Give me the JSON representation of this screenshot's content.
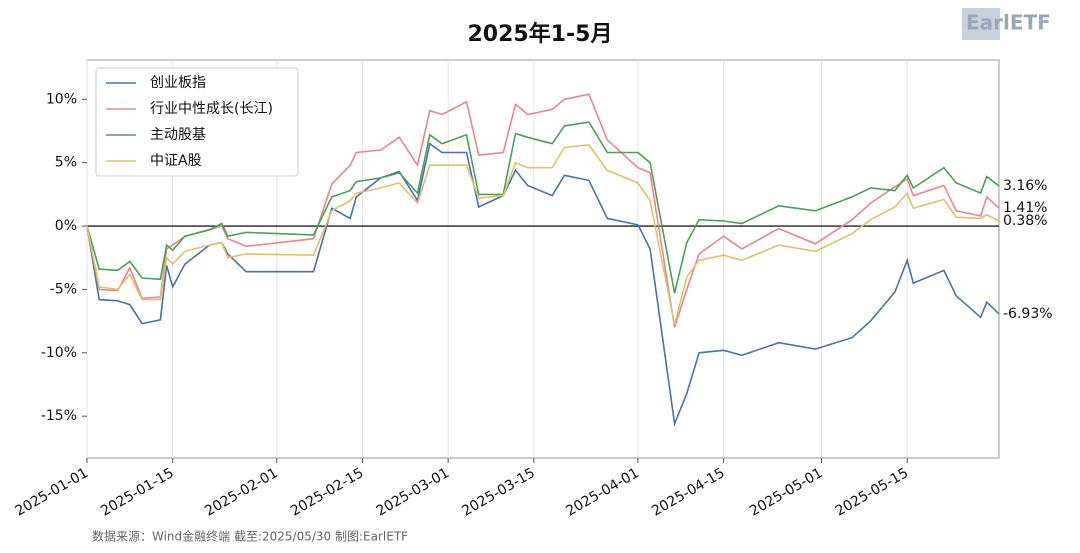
{
  "chart_data": {
    "type": "line",
    "title": "2025年1-5月",
    "source": "数据来源：Wind金融终端 截至:2025/05/30 制图:EarlETF",
    "logo": "EarlETF",
    "x": [
      "2025-01-01",
      "2025-01-03",
      "2025-01-06",
      "2025-01-08",
      "2025-01-10",
      "2025-01-13",
      "2025-01-14",
      "2025-01-15",
      "2025-01-17",
      "2025-01-21",
      "2025-01-23",
      "2025-01-24",
      "2025-01-27",
      "2025-02-07",
      "2025-02-10",
      "2025-02-13",
      "2025-02-14",
      "2025-02-18",
      "2025-02-21",
      "2025-02-24",
      "2025-02-26",
      "2025-02-28",
      "2025-03-04",
      "2025-03-06",
      "2025-03-10",
      "2025-03-12",
      "2025-03-14",
      "2025-03-18",
      "2025-03-20",
      "2025-03-24",
      "2025-03-27",
      "2025-04-01",
      "2025-04-03",
      "2025-04-07",
      "2025-04-09",
      "2025-04-11",
      "2025-04-15",
      "2025-04-18",
      "2025-04-24",
      "2025-04-30",
      "2025-05-06",
      "2025-05-09",
      "2025-05-13",
      "2025-05-15",
      "2025-05-16",
      "2025-05-21",
      "2025-05-23",
      "2025-05-27",
      "2025-05-28",
      "2025-05-30"
    ],
    "series": [
      {
        "name": "创业板指",
        "color": "#4a6fb5",
        "end_label": "-6.93%",
        "values": [
          0,
          -5.8,
          -5.9,
          -6.2,
          -7.7,
          -7.4,
          -3.1,
          -4.8,
          -3.0,
          -1.5,
          -1.3,
          -2.2,
          -3.6,
          -3.6,
          1.4,
          0.6,
          2.3,
          3.8,
          4.3,
          2.0,
          6.5,
          5.8,
          5.8,
          1.5,
          2.4,
          4.4,
          3.2,
          2.4,
          4.0,
          3.6,
          0.6,
          0.1,
          -1.8,
          -15.6,
          -13.2,
          -10.0,
          -9.8,
          -10.2,
          -9.2,
          -9.7,
          -8.8,
          -7.5,
          -5.2,
          -2.7,
          -4.5,
          -3.5,
          -5.5,
          -7.2,
          -6.0,
          -6.93
        ]
      },
      {
        "name": "行业中性成长(长江)",
        "color": "#e8868f",
        "end_label": "1.41%",
        "values": [
          0,
          -5.0,
          -5.1,
          -3.3,
          -5.7,
          -5.6,
          -1.8,
          -1.5,
          -0.8,
          -0.3,
          0.0,
          -1.0,
          -1.6,
          -1.0,
          3.3,
          4.8,
          5.8,
          6.0,
          7.0,
          4.8,
          9.1,
          8.8,
          9.8,
          5.6,
          5.8,
          9.6,
          8.8,
          9.2,
          10.0,
          10.4,
          6.8,
          4.6,
          4.2,
          -8.0,
          -5.0,
          -2.2,
          -0.8,
          -1.8,
          -0.2,
          -1.4,
          0.5,
          1.8,
          3.1,
          3.7,
          2.4,
          3.2,
          1.2,
          0.8,
          2.3,
          1.41
        ]
      },
      {
        "name": "主动股基",
        "color": "#4e9e57",
        "end_label": "3.16%",
        "values": [
          0,
          -3.4,
          -3.5,
          -2.8,
          -4.1,
          -4.2,
          -1.5,
          -1.9,
          -0.8,
          -0.3,
          0.2,
          -0.8,
          -0.5,
          -0.7,
          2.3,
          2.8,
          3.5,
          3.8,
          4.2,
          2.6,
          7.2,
          6.5,
          7.2,
          2.5,
          2.5,
          7.3,
          7.0,
          6.5,
          7.9,
          8.2,
          5.8,
          5.8,
          5.0,
          -5.3,
          -1.3,
          0.5,
          0.4,
          0.2,
          1.6,
          1.2,
          2.3,
          3.0,
          2.8,
          4.0,
          3.0,
          4.6,
          3.4,
          2.6,
          3.9,
          3.16
        ]
      },
      {
        "name": "中证A股",
        "color": "#dcc36a",
        "end_label": "0.38%",
        "values": [
          0,
          -4.8,
          -5.0,
          -3.8,
          -5.8,
          -5.8,
          -2.5,
          -3.0,
          -2.0,
          -1.5,
          -1.3,
          -2.5,
          -2.2,
          -2.3,
          1.2,
          2.0,
          2.6,
          3.0,
          3.4,
          1.8,
          4.8,
          4.8,
          4.8,
          2.2,
          2.4,
          5.0,
          4.6,
          4.6,
          6.2,
          6.4,
          4.4,
          3.4,
          2.0,
          -7.8,
          -4.0,
          -2.7,
          -2.3,
          -2.7,
          -1.5,
          -2.0,
          -0.6,
          0.5,
          1.5,
          2.6,
          1.4,
          2.1,
          0.7,
          0.6,
          0.9,
          0.38
        ]
      }
    ],
    "xlim": [
      "2025-01-01",
      "2025-05-30"
    ],
    "xticks": [
      "2025-01-01",
      "2025-01-15",
      "2025-02-01",
      "2025-02-15",
      "2025-03-01",
      "2025-03-15",
      "2025-04-01",
      "2025-04-15",
      "2025-05-01",
      "2025-05-15"
    ],
    "ylim": [
      -18.3,
      13.1
    ],
    "yticks": [
      {
        "value": -15,
        "label": "-15%"
      },
      {
        "value": -10,
        "label": "-10%"
      },
      {
        "value": -5,
        "label": "-5%"
      },
      {
        "value": 0,
        "label": "0%"
      },
      {
        "value": 5,
        "label": "5%"
      },
      {
        "value": 10,
        "label": "10%"
      }
    ],
    "grid": "x",
    "zero_line": 0,
    "legend": "upper-left"
  }
}
